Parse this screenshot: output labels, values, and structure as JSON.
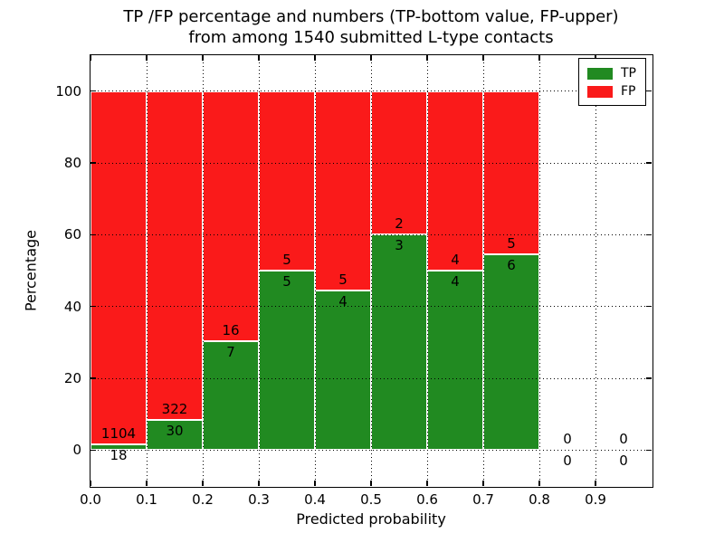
{
  "chart_data": {
    "type": "bar",
    "stacked": true,
    "normalized_to_percent": true,
    "title_line1": "TP /FP percentage and numbers (TP-bottom value, FP-upper)",
    "title_line2": "from among 1540 submitted L-type contacts",
    "xlabel": "Predicted probability",
    "ylabel": "Percentage",
    "xlim": [
      0.0,
      1.0
    ],
    "ylim": [
      -10,
      110
    ],
    "x_ticks": [
      "0.0",
      "0.1",
      "0.2",
      "0.3",
      "0.4",
      "0.5",
      "0.6",
      "0.7",
      "0.8",
      "0.9"
    ],
    "y_ticks": [
      0,
      20,
      40,
      60,
      80,
      100
    ],
    "grid": "dotted, drawn over bars",
    "legend_position": "upper-right",
    "legend": [
      {
        "label": "TP",
        "color": "#218a21"
      },
      {
        "label": "FP",
        "color": "#fa1a1a"
      }
    ],
    "bar_edge_color": "#ffffff",
    "total_contacts": 1540,
    "bins": [
      {
        "x0": 0.0,
        "x1": 0.1,
        "tp_count": "18",
        "fp_count": "1104",
        "tp_pct": 1.6,
        "has_bar": true
      },
      {
        "x0": 0.1,
        "x1": 0.2,
        "tp_count": "30",
        "fp_count": "322",
        "tp_pct": 8.52,
        "has_bar": true
      },
      {
        "x0": 0.2,
        "x1": 0.3,
        "tp_count": "7",
        "fp_count": "16",
        "tp_pct": 30.43,
        "has_bar": true
      },
      {
        "x0": 0.3,
        "x1": 0.4,
        "tp_count": "5",
        "fp_count": "5",
        "tp_pct": 50.0,
        "has_bar": true
      },
      {
        "x0": 0.4,
        "x1": 0.5,
        "tp_count": "4",
        "fp_count": "5",
        "tp_pct": 44.44,
        "has_bar": true
      },
      {
        "x0": 0.5,
        "x1": 0.6,
        "tp_count": "3",
        "fp_count": "2",
        "tp_pct": 60.0,
        "has_bar": true
      },
      {
        "x0": 0.6,
        "x1": 0.7,
        "tp_count": "4",
        "fp_count": "4",
        "tp_pct": 50.0,
        "has_bar": true
      },
      {
        "x0": 0.7,
        "x1": 0.8,
        "tp_count": "6",
        "fp_count": "5",
        "tp_pct": 54.55,
        "has_bar": true
      },
      {
        "x0": 0.8,
        "x1": 0.9,
        "tp_count": "0",
        "fp_count": "0",
        "tp_pct": 0.0,
        "has_bar": false
      },
      {
        "x0": 0.9,
        "x1": 1.0,
        "tp_count": "0",
        "fp_count": "0",
        "tp_pct": 0.0,
        "has_bar": false
      }
    ]
  }
}
